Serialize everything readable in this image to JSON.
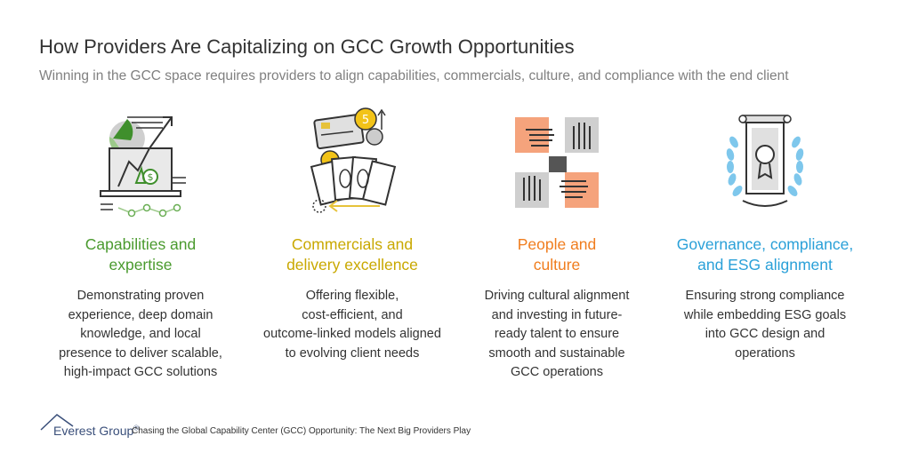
{
  "header": {
    "title": "How Providers Are Capitalizing on GCC Growth Opportunities",
    "subtitle": "Winning in the GCC space requires providers to align capabilities, commercials, culture, and compliance with the end client"
  },
  "columns": [
    {
      "icon": "laptop-growth-chart-icon",
      "heading_lines": [
        "Capabilities and",
        "expertise"
      ],
      "color": "#4a9a2e",
      "description_lines": [
        "Demonstrating proven",
        "experience, deep domain",
        "knowledge, and local",
        "presence to deliver scalable,",
        "high-impact GCC solutions"
      ]
    },
    {
      "icon": "cash-coins-card-icon",
      "heading_lines": [
        "Commercials and",
        "delivery excellence"
      ],
      "color": "#c9a800",
      "description_lines": [
        "Offering flexible,",
        "cost-efficient, and",
        "outcome-linked models aligned",
        "to evolving client needs"
      ]
    },
    {
      "icon": "joined-hands-icon",
      "heading_lines": [
        "People and",
        "culture"
      ],
      "color": "#f07d1e",
      "description_lines": [
        "Driving cultural alignment",
        "and investing in future-",
        "ready talent to ensure",
        "smooth and sustainable",
        "GCC operations"
      ]
    },
    {
      "icon": "laurel-pillar-certificate-icon",
      "heading_lines": [
        "Governance, compliance,",
        "and ESG alignment"
      ],
      "color": "#2aa0d8",
      "description_lines": [
        "Ensuring strong compliance",
        "while embedding ESG goals",
        "into GCC design and",
        "operations"
      ]
    }
  ],
  "footer": {
    "brand": "Everest Group",
    "registered": "®",
    "reference": "Chasing the Global Capability Center (GCC) Opportunity: The Next Big Providers Play",
    "brand_color": "#3a4f7a"
  }
}
